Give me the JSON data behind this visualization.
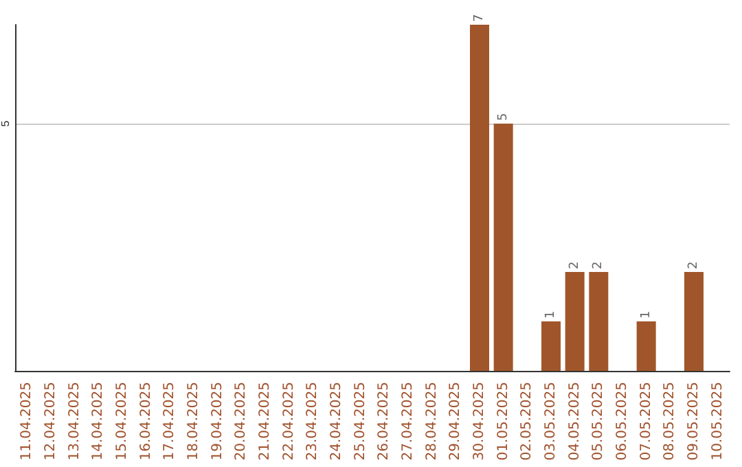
{
  "chart_data": {
    "type": "bar",
    "categories": [
      "11.04.2025",
      "12.04.2025",
      "13.04.2025",
      "14.04.2025",
      "15.04.2025",
      "16.04.2025",
      "17.04.2025",
      "18.04.2025",
      "19.04.2025",
      "20.04.2025",
      "21.04.2025",
      "22.04.2025",
      "23.04.2025",
      "24.04.2025",
      "25.04.2025",
      "26.04.2025",
      "27.04.2025",
      "28.04.2025",
      "29.04.2025",
      "30.04.2025",
      "01.05.2025",
      "02.05.2025",
      "03.05.2025",
      "04.05.2025",
      "05.05.2025",
      "06.05.2025",
      "07.05.2025",
      "08.05.2025",
      "09.05.2025",
      "10.05.2025"
    ],
    "values": [
      null,
      null,
      null,
      null,
      null,
      null,
      null,
      null,
      null,
      null,
      null,
      null,
      null,
      null,
      null,
      null,
      null,
      null,
      null,
      7,
      5,
      null,
      1,
      2,
      2,
      null,
      1,
      null,
      2,
      null
    ],
    "color": "#a0562a",
    "ylim": [
      0,
      7
    ],
    "yticks": [
      5
    ],
    "grid": "y",
    "data_labels": true
  }
}
